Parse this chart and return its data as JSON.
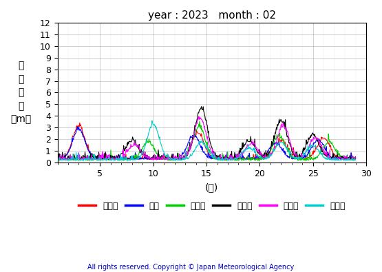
{
  "title": "year : 2023   month : 02",
  "xlabel": "(日)",
  "ylabel": "有\n義\n波\n高\n（m）",
  "xlim": [
    1,
    29
  ],
  "ylim": [
    0,
    12
  ],
  "yticks": [
    0,
    1,
    2,
    3,
    4,
    5,
    6,
    7,
    8,
    9,
    10,
    11,
    12
  ],
  "xticks": [
    5,
    10,
    15,
    20,
    25,
    30
  ],
  "legend_labels": [
    "上ノ国",
    "唐桑",
    "石廂導",
    "経ヶ岸",
    "生月島",
    "屋久島"
  ],
  "legend_colors": [
    "#ff0000",
    "#0000ff",
    "#00cc00",
    "#000000",
    "#ff00ff",
    "#00cccc"
  ],
  "copyright": "All rights reserved. Copyright © Japan Meteorological Agency",
  "n_points": 672
}
